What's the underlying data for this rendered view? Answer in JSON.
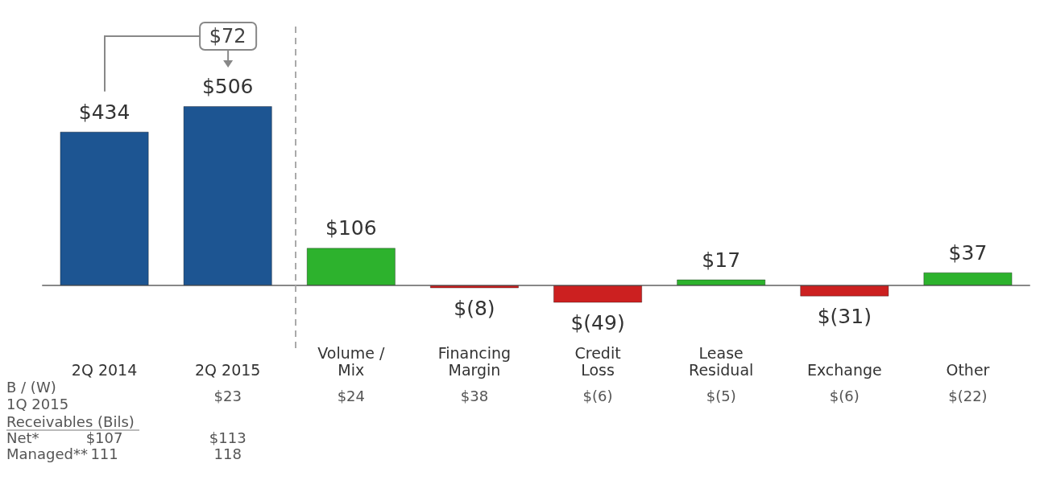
{
  "chart_data": {
    "type": "bar",
    "categories": [
      "2Q 2014",
      "2Q 2015",
      "Volume /\nMix",
      "Financing\nMargin",
      "Credit\nLoss",
      "Lease\nResidual",
      "Exchange",
      "Other"
    ],
    "values": [
      434,
      506,
      106,
      -8,
      -49,
      17,
      -31,
      37
    ],
    "colors": [
      "#1d5592",
      "#1d5592",
      "#2db22d",
      "#cc2020",
      "#cc2020",
      "#2db22d",
      "#cc2020",
      "#2db22d"
    ],
    "value_labels": [
      "$434",
      "$506",
      "$106",
      "$(8)",
      "$(49)",
      "$17",
      "$(31)",
      "$37"
    ],
    "annotations": [
      "$72",
      "B / (W)\n1Q 2015",
      "$23",
      "$24",
      "$38",
      "$(6)",
      "$(5)",
      "$(6)",
      "$(22)",
      "Receivables (Bils)",
      "Net*",
      "$107",
      "$113",
      "Managed**",
      "111",
      "118"
    ]
  }
}
